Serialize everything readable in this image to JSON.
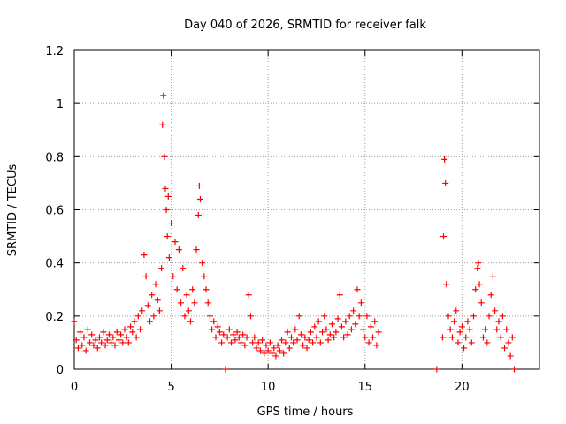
{
  "chart_data": {
    "type": "scatter",
    "title": "Day 040 of 2026, SRMTID for receiver falk",
    "xlabel": "GPS time / hours",
    "ylabel": "SRMTID / TECUs",
    "xlim": [
      0,
      24
    ],
    "ylim": [
      0,
      1.2
    ],
    "x_ticks": [
      0,
      5,
      10,
      15,
      20
    ],
    "x_tick_labels": [
      "0",
      "5",
      "10",
      "15",
      "20"
    ],
    "y_ticks": [
      0,
      0.2,
      0.4,
      0.6,
      0.8,
      1.0,
      1.2
    ],
    "y_tick_labels": [
      "0",
      "0.2",
      "0.4",
      "0.6",
      "0.8",
      "1",
      "1.2"
    ],
    "grid": true,
    "marker": "+",
    "color": "#ff0000",
    "series": [
      {
        "name": "SRMTID",
        "points": [
          [
            0.0,
            0.18
          ],
          [
            0.1,
            0.11
          ],
          [
            0.2,
            0.08
          ],
          [
            0.3,
            0.14
          ],
          [
            0.4,
            0.09
          ],
          [
            0.5,
            0.12
          ],
          [
            0.6,
            0.07
          ],
          [
            0.7,
            0.15
          ],
          [
            0.8,
            0.1
          ],
          [
            0.9,
            0.13
          ],
          [
            1.0,
            0.09
          ],
          [
            1.1,
            0.11
          ],
          [
            1.2,
            0.08
          ],
          [
            1.3,
            0.12
          ],
          [
            1.4,
            0.1
          ],
          [
            1.5,
            0.14
          ],
          [
            1.6,
            0.09
          ],
          [
            1.7,
            0.11
          ],
          [
            1.8,
            0.13
          ],
          [
            1.9,
            0.1
          ],
          [
            2.0,
            0.12
          ],
          [
            2.1,
            0.09
          ],
          [
            2.2,
            0.14
          ],
          [
            2.3,
            0.11
          ],
          [
            2.4,
            0.13
          ],
          [
            2.5,
            0.1
          ],
          [
            2.6,
            0.15
          ],
          [
            2.7,
            0.12
          ],
          [
            2.8,
            0.1
          ],
          [
            2.9,
            0.16
          ],
          [
            3.0,
            0.14
          ],
          [
            3.1,
            0.18
          ],
          [
            3.2,
            0.12
          ],
          [
            3.3,
            0.2
          ],
          [
            3.4,
            0.15
          ],
          [
            3.5,
            0.22
          ],
          [
            3.6,
            0.43
          ],
          [
            3.7,
            0.35
          ],
          [
            3.8,
            0.24
          ],
          [
            3.9,
            0.18
          ],
          [
            4.0,
            0.28
          ],
          [
            4.1,
            0.2
          ],
          [
            4.2,
            0.32
          ],
          [
            4.3,
            0.26
          ],
          [
            4.4,
            0.22
          ],
          [
            4.5,
            0.38
          ],
          [
            4.55,
            0.92
          ],
          [
            4.6,
            1.03
          ],
          [
            4.65,
            0.8
          ],
          [
            4.7,
            0.68
          ],
          [
            4.75,
            0.6
          ],
          [
            4.8,
            0.5
          ],
          [
            4.85,
            0.65
          ],
          [
            4.9,
            0.42
          ],
          [
            5.0,
            0.55
          ],
          [
            5.1,
            0.35
          ],
          [
            5.2,
            0.48
          ],
          [
            5.3,
            0.3
          ],
          [
            5.4,
            0.45
          ],
          [
            5.5,
            0.25
          ],
          [
            5.6,
            0.38
          ],
          [
            5.7,
            0.2
          ],
          [
            5.8,
            0.28
          ],
          [
            5.9,
            0.22
          ],
          [
            6.0,
            0.18
          ],
          [
            6.1,
            0.3
          ],
          [
            6.2,
            0.25
          ],
          [
            6.3,
            0.45
          ],
          [
            6.4,
            0.58
          ],
          [
            6.45,
            0.69
          ],
          [
            6.5,
            0.64
          ],
          [
            6.6,
            0.4
          ],
          [
            6.7,
            0.35
          ],
          [
            6.8,
            0.3
          ],
          [
            6.9,
            0.25
          ],
          [
            7.0,
            0.2
          ],
          [
            7.1,
            0.15
          ],
          [
            7.2,
            0.18
          ],
          [
            7.3,
            0.12
          ],
          [
            7.4,
            0.16
          ],
          [
            7.5,
            0.14
          ],
          [
            7.6,
            0.1
          ],
          [
            7.7,
            0.13
          ],
          [
            7.8,
            0.0
          ],
          [
            7.9,
            0.12
          ],
          [
            8.0,
            0.15
          ],
          [
            8.1,
            0.1
          ],
          [
            8.2,
            0.13
          ],
          [
            8.3,
            0.11
          ],
          [
            8.4,
            0.14
          ],
          [
            8.5,
            0.12
          ],
          [
            8.6,
            0.1
          ],
          [
            8.7,
            0.13
          ],
          [
            8.8,
            0.09
          ],
          [
            8.9,
            0.12
          ],
          [
            9.0,
            0.28
          ],
          [
            9.1,
            0.2
          ],
          [
            9.2,
            0.1
          ],
          [
            9.3,
            0.12
          ],
          [
            9.4,
            0.08
          ],
          [
            9.5,
            0.1
          ],
          [
            9.6,
            0.07
          ],
          [
            9.7,
            0.11
          ],
          [
            9.8,
            0.06
          ],
          [
            9.9,
            0.09
          ],
          [
            10.0,
            0.07
          ],
          [
            10.1,
            0.1
          ],
          [
            10.2,
            0.06
          ],
          [
            10.3,
            0.08
          ],
          [
            10.4,
            0.05
          ],
          [
            10.5,
            0.09
          ],
          [
            10.6,
            0.07
          ],
          [
            10.7,
            0.11
          ],
          [
            10.8,
            0.06
          ],
          [
            10.9,
            0.1
          ],
          [
            11.0,
            0.14
          ],
          [
            11.1,
            0.08
          ],
          [
            11.2,
            0.12
          ],
          [
            11.3,
            0.1
          ],
          [
            11.4,
            0.15
          ],
          [
            11.5,
            0.11
          ],
          [
            11.6,
            0.2
          ],
          [
            11.7,
            0.13
          ],
          [
            11.8,
            0.09
          ],
          [
            11.9,
            0.12
          ],
          [
            12.0,
            0.08
          ],
          [
            12.1,
            0.11
          ],
          [
            12.2,
            0.14
          ],
          [
            12.3,
            0.1
          ],
          [
            12.4,
            0.16
          ],
          [
            12.5,
            0.12
          ],
          [
            12.6,
            0.18
          ],
          [
            12.7,
            0.1
          ],
          [
            12.8,
            0.14
          ],
          [
            12.9,
            0.2
          ],
          [
            13.0,
            0.15
          ],
          [
            13.1,
            0.11
          ],
          [
            13.2,
            0.13
          ],
          [
            13.3,
            0.17
          ],
          [
            13.4,
            0.12
          ],
          [
            13.5,
            0.14
          ],
          [
            13.6,
            0.19
          ],
          [
            13.7,
            0.28
          ],
          [
            13.8,
            0.16
          ],
          [
            13.9,
            0.12
          ],
          [
            14.0,
            0.18
          ],
          [
            14.1,
            0.13
          ],
          [
            14.2,
            0.2
          ],
          [
            14.3,
            0.15
          ],
          [
            14.4,
            0.22
          ],
          [
            14.5,
            0.17
          ],
          [
            14.6,
            0.3
          ],
          [
            14.7,
            0.2
          ],
          [
            14.8,
            0.25
          ],
          [
            14.9,
            0.15
          ],
          [
            15.0,
            0.12
          ],
          [
            15.1,
            0.2
          ],
          [
            15.2,
            0.1
          ],
          [
            15.3,
            0.16
          ],
          [
            15.4,
            0.12
          ],
          [
            15.5,
            0.18
          ],
          [
            15.6,
            0.09
          ],
          [
            15.7,
            0.14
          ],
          [
            18.7,
            0.0
          ],
          [
            19.0,
            0.12
          ],
          [
            19.05,
            0.5
          ],
          [
            19.1,
            0.79
          ],
          [
            19.15,
            0.7
          ],
          [
            19.2,
            0.32
          ],
          [
            19.3,
            0.2
          ],
          [
            19.4,
            0.15
          ],
          [
            19.5,
            0.12
          ],
          [
            19.6,
            0.18
          ],
          [
            19.7,
            0.22
          ],
          [
            19.8,
            0.1
          ],
          [
            19.9,
            0.14
          ],
          [
            20.0,
            0.16
          ],
          [
            20.1,
            0.08
          ],
          [
            20.2,
            0.12
          ],
          [
            20.3,
            0.18
          ],
          [
            20.4,
            0.15
          ],
          [
            20.5,
            0.1
          ],
          [
            20.6,
            0.2
          ],
          [
            20.7,
            0.3
          ],
          [
            20.8,
            0.38
          ],
          [
            20.85,
            0.4
          ],
          [
            20.9,
            0.32
          ],
          [
            21.0,
            0.25
          ],
          [
            21.1,
            0.12
          ],
          [
            21.2,
            0.15
          ],
          [
            21.3,
            0.1
          ],
          [
            21.4,
            0.2
          ],
          [
            21.5,
            0.28
          ],
          [
            21.6,
            0.35
          ],
          [
            21.7,
            0.22
          ],
          [
            21.8,
            0.15
          ],
          [
            21.9,
            0.18
          ],
          [
            22.0,
            0.12
          ],
          [
            22.1,
            0.2
          ],
          [
            22.2,
            0.08
          ],
          [
            22.3,
            0.15
          ],
          [
            22.4,
            0.1
          ],
          [
            22.5,
            0.05
          ],
          [
            22.6,
            0.12
          ],
          [
            22.7,
            0.0
          ]
        ]
      }
    ]
  }
}
